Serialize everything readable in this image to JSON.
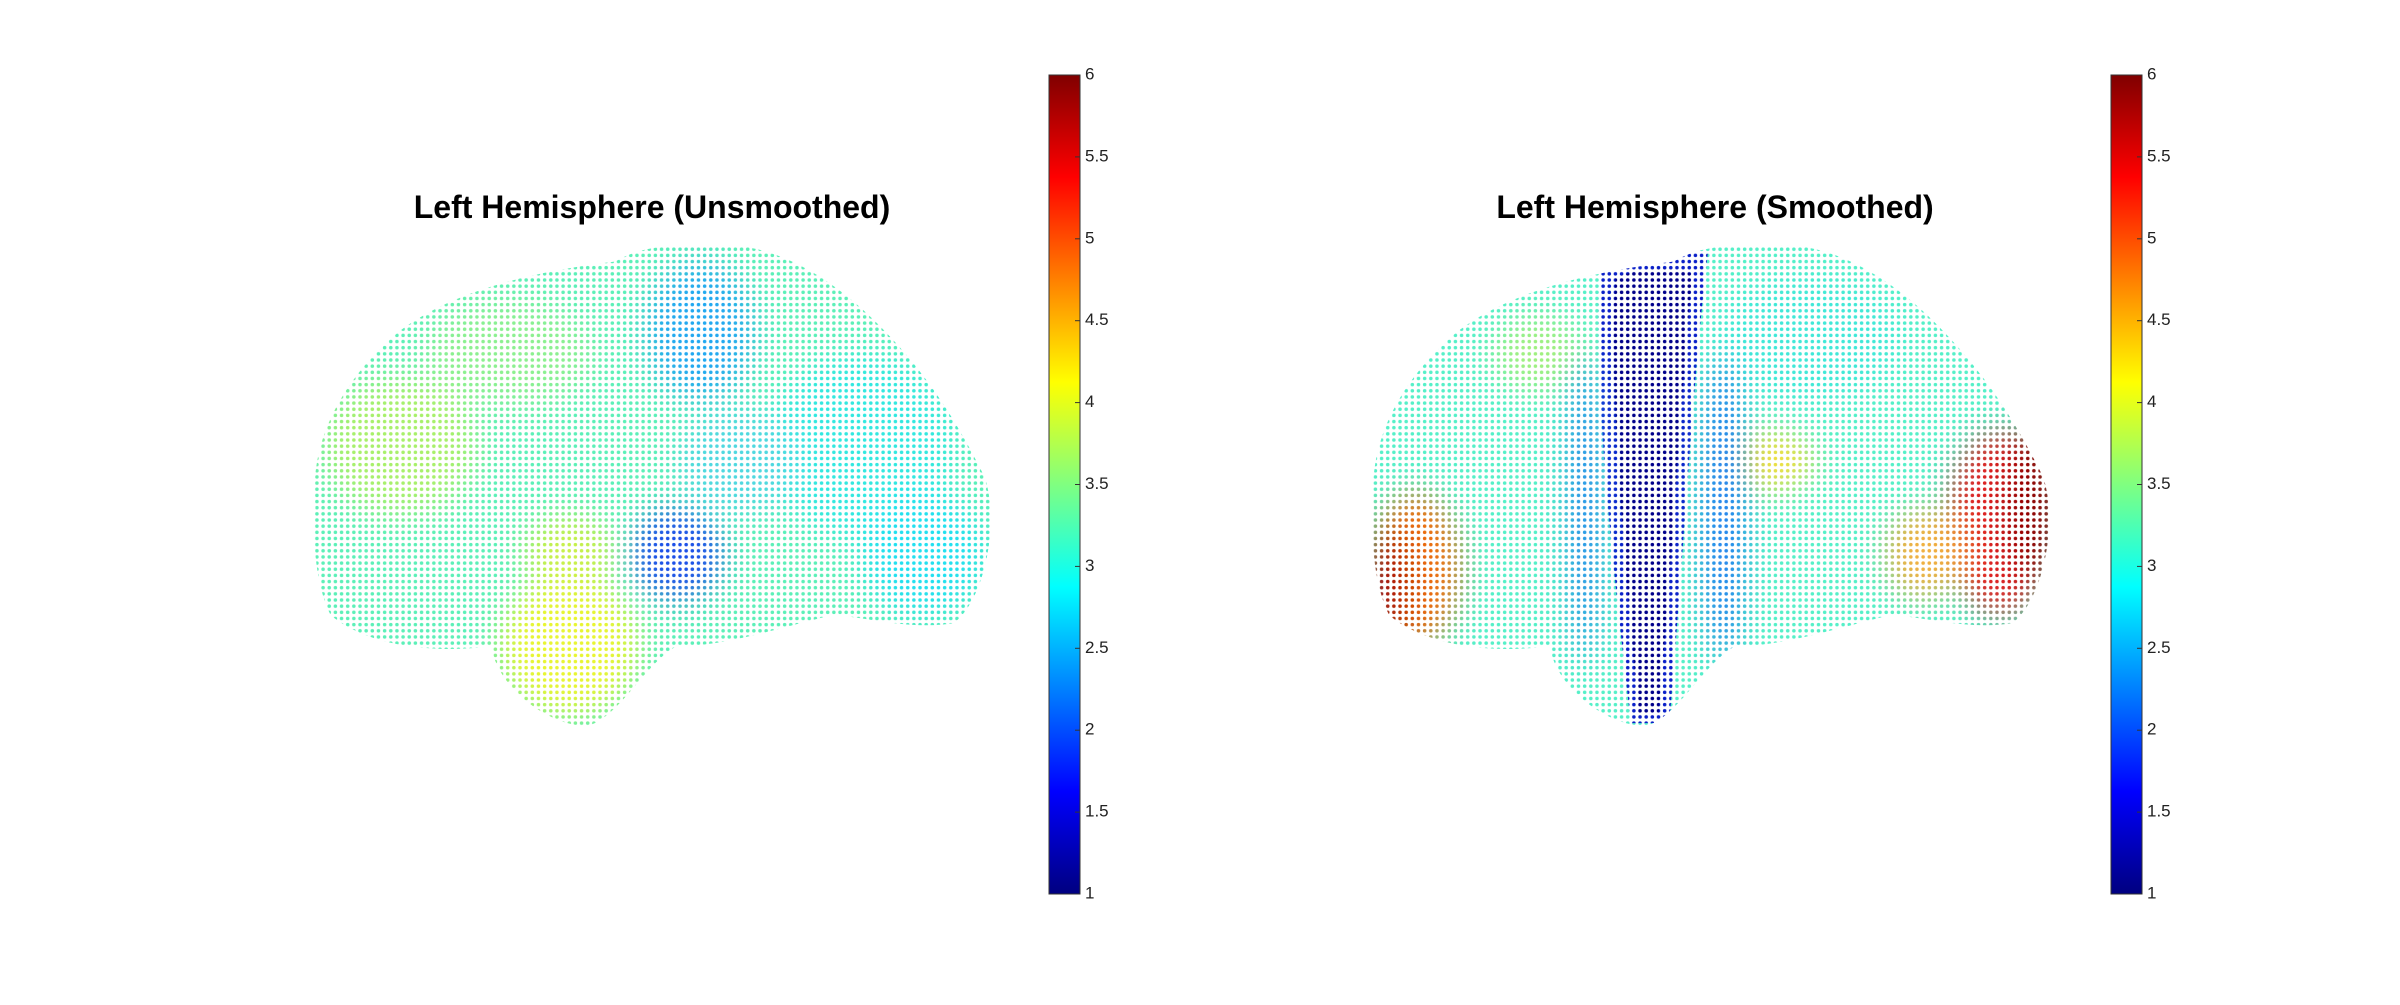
{
  "chart_data": [
    {
      "type": "scatter",
      "title": "Left Hemisphere (Unsmoothed)",
      "clim": [
        1,
        6
      ],
      "cticks": [
        1,
        1.5,
        2,
        2.5,
        3,
        3.5,
        4,
        4.5,
        5,
        5.5,
        6
      ],
      "colormap": [
        "#000080",
        "#0000ff",
        "#0080ff",
        "#00ffff",
        "#80ff80",
        "#ffff00",
        "#ff8000",
        "#ff0000",
        "#800000"
      ]
    },
    {
      "type": "scatter",
      "title": "Left Hemisphere (Smoothed)",
      "clim": [
        1,
        6
      ],
      "cticks": [
        1,
        1.5,
        2,
        2.5,
        3,
        3.5,
        4,
        4.5,
        5,
        5.5,
        6
      ],
      "colormap": [
        "#000080",
        "#0000ff",
        "#0080ff",
        "#00ffff",
        "#80ff80",
        "#ffff00",
        "#ff8000",
        "#ff0000",
        "#800000"
      ]
    }
  ]
}
